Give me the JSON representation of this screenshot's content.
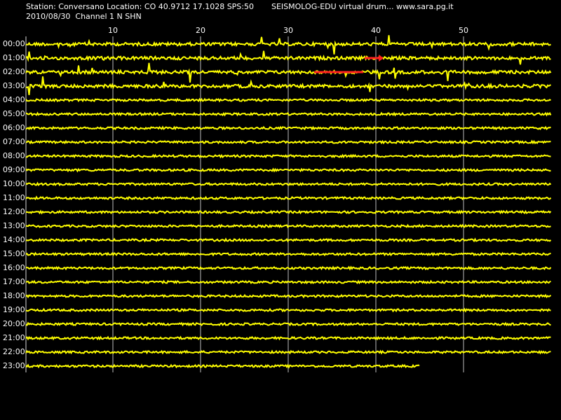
{
  "header": {
    "station": "Station: Conversano Location: CO 40.9712 17.1028 SPS:50",
    "program": "SEISMOLOG-EDU virtual drum... www.sara.pg.it",
    "date_channel": "2010/08/30  Channel 1 N SHN"
  },
  "minute_ticks": [
    10,
    20,
    30,
    40,
    50
  ],
  "hours": [
    "00:00",
    "01:00",
    "02:00",
    "03:00",
    "04:00",
    "05:00",
    "06:00",
    "07:00",
    "08:00",
    "09:00",
    "10:00",
    "11:00",
    "12:00",
    "13:00",
    "14:00",
    "15:00",
    "16:00",
    "17:00",
    "18:00",
    "19:00",
    "20:00",
    "21:00",
    "22:00",
    "23:00"
  ]
}
